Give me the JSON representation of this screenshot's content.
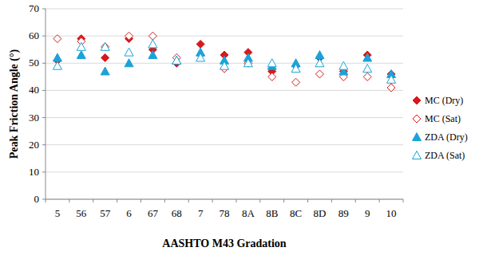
{
  "chart_data": {
    "type": "scatter",
    "x_label": "AASHTO M43 Gradation",
    "y_label": "Peak Friction Angle (°)",
    "categories": [
      "5",
      "56",
      "57",
      "6",
      "67",
      "68",
      "7",
      "78",
      "8A",
      "8B",
      "8C",
      "8D",
      "89",
      "9",
      "10"
    ],
    "series": [
      {
        "name": "MC (Dry)",
        "color": "#d7191c",
        "marker": "diamond",
        "values": [
          51,
          59,
          52,
          59,
          55,
          50,
          57,
          53,
          54,
          47,
          49,
          52,
          47,
          53,
          46
        ]
      },
      {
        "name": "MC (Sat)",
        "color": "#d7191c",
        "marker": "open-diamond",
        "values": [
          59,
          58,
          56,
          60,
          60,
          52,
          53,
          48,
          50,
          45,
          43,
          46,
          45,
          45,
          41
        ]
      },
      {
        "name": "ZDA (Dry)",
        "color": "#1ba3d8",
        "marker": "triangle",
        "values": [
          52,
          53,
          47,
          50,
          53,
          51,
          54,
          51,
          52,
          49,
          50,
          53,
          47,
          52,
          46
        ]
      },
      {
        "name": "ZDA (Sat)",
        "color": "#1ba3d8",
        "marker": "open-triangle",
        "values": [
          49,
          56,
          56,
          54,
          57,
          51,
          52,
          49,
          50,
          50,
          48,
          50,
          49,
          48,
          44
        ]
      }
    ],
    "ylim": [
      0,
      70
    ],
    "yticks": [
      0,
      10,
      20,
      30,
      40,
      50,
      60,
      70
    ],
    "grid": true,
    "legend": "right"
  }
}
